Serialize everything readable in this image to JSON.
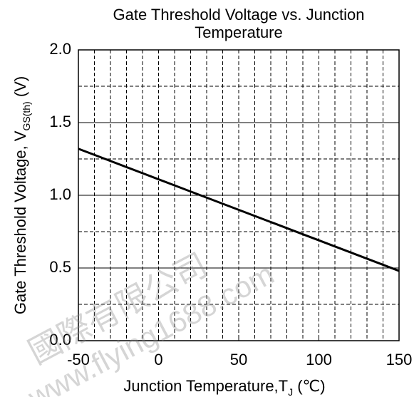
{
  "chart_data": {
    "type": "line",
    "title": "Gate Threshold Voltage vs. Junction Temperature",
    "xlabel": [
      "Junction Temperature,T",
      "J",
      " (℃)"
    ],
    "ylabel": [
      "Gate Threshold Voltage, V",
      "GS(th)",
      " (V)"
    ],
    "x": [
      -50,
      150
    ],
    "series": [
      {
        "name": "VGS(th)",
        "color": "#000000",
        "values": [
          1.32,
          0.48
        ]
      }
    ],
    "xlim": [
      -50,
      150
    ],
    "ylim": [
      0,
      2
    ],
    "xticks": [
      -50,
      0,
      50,
      100,
      150
    ],
    "yticks": [
      {
        "value": 0,
        "label": "0.0"
      },
      {
        "value": 0.5,
        "label": "0.5"
      },
      {
        "value": 1,
        "label": "1.0"
      },
      {
        "value": 1.5,
        "label": "1.5"
      },
      {
        "value": 2,
        "label": "2.0"
      }
    ],
    "xgrid_minor": [
      -40,
      -30,
      -20,
      -10,
      0,
      10,
      20,
      30,
      40,
      50,
      60,
      70,
      80,
      90,
      100,
      110,
      120,
      130,
      140
    ],
    "ygrid_minor": [
      0.25,
      0.75,
      1.25,
      1.75
    ],
    "grid": true,
    "watermark": [
      "國際有限公司",
      "www.flying1688.com"
    ]
  }
}
